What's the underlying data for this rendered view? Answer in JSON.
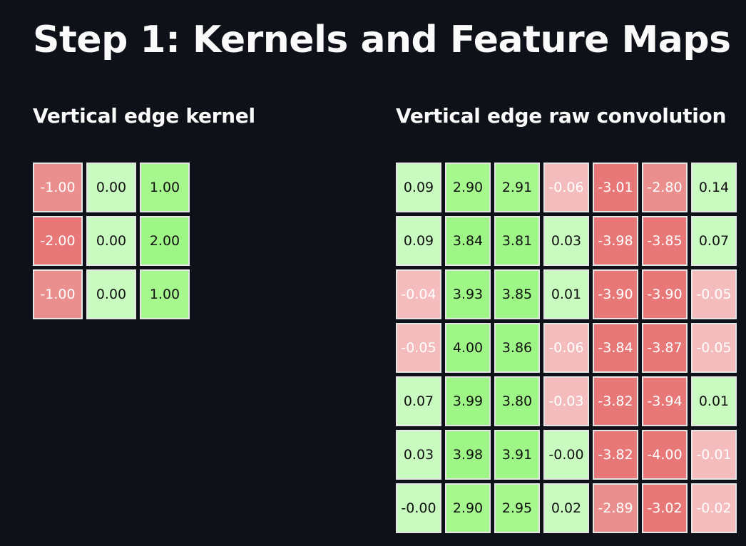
{
  "page": {
    "title": "Step 1: Kernels and Feature Maps"
  },
  "kernel": {
    "title": "Vertical edge kernel",
    "rows": [
      [
        "-1.00",
        "0.00",
        "1.00"
      ],
      [
        "-2.00",
        "0.00",
        "2.00"
      ],
      [
        "-1.00",
        "0.00",
        "1.00"
      ]
    ]
  },
  "convolution": {
    "title": "Vertical edge raw convolution",
    "rows": [
      [
        "0.09",
        "2.90",
        "2.91",
        "-0.06",
        "-3.01",
        "-2.80",
        "0.14"
      ],
      [
        "0.09",
        "3.84",
        "3.81",
        "0.03",
        "-3.98",
        "-3.85",
        "0.07"
      ],
      [
        "-0.04",
        "3.93",
        "3.85",
        "0.01",
        "-3.90",
        "-3.90",
        "-0.05"
      ],
      [
        "-0.05",
        "4.00",
        "3.86",
        "-0.06",
        "-3.84",
        "-3.87",
        "-0.05"
      ],
      [
        "0.07",
        "3.99",
        "3.80",
        "-0.03",
        "-3.82",
        "-3.94",
        "0.01"
      ],
      [
        "0.03",
        "3.98",
        "3.91",
        "-0.00",
        "-3.82",
        "-4.00",
        "-0.01"
      ],
      [
        "-0.00",
        "2.90",
        "2.95",
        "0.02",
        "-2.89",
        "-3.02",
        "-0.02"
      ]
    ]
  },
  "colors": {
    "background": "#0e1117",
    "text": "#fafafa",
    "cell_border": "#e6e6e6",
    "positive_scale": [
      "#c9fbc1",
      "#b4f9a8",
      "#a7f78f",
      "#9ef686"
    ],
    "negative_scale": [
      "#f4bcbc",
      "#eea2a2",
      "#ea8e8e",
      "#e87878"
    ]
  }
}
